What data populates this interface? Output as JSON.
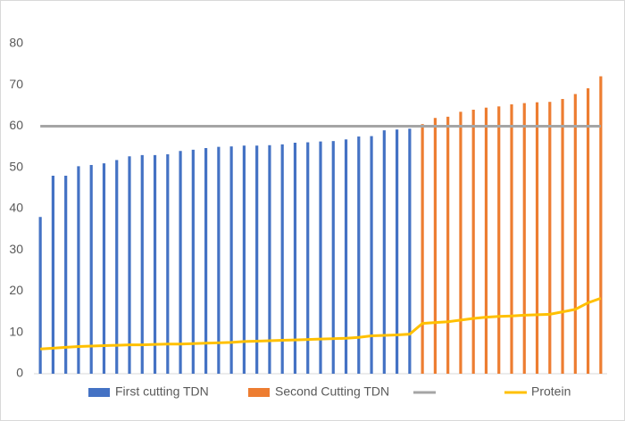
{
  "chart_data": {
    "type": "bar",
    "categories": [
      null,
      null,
      null,
      null,
      null,
      null,
      null,
      null,
      null,
      null,
      null,
      null,
      null,
      null,
      null,
      null,
      null,
      null,
      null,
      null,
      null,
      null,
      null,
      null,
      null,
      null,
      null,
      null,
      null,
      null,
      null,
      null,
      null,
      null,
      null,
      null,
      null,
      null,
      null,
      null,
      null,
      null,
      null,
      null,
      null
    ],
    "series": [
      {
        "name": "First cutting TDN",
        "type": "bar",
        "color": "#4472c4",
        "values": [
          38,
          48,
          48,
          50.3,
          50.6,
          51,
          51.8,
          52.7,
          53,
          53,
          53.2,
          54,
          54.3,
          54.7,
          55,
          55.1,
          55.3,
          55.3,
          55.4,
          55.6,
          56,
          56.1,
          56.3,
          56.4,
          56.8,
          57.5,
          57.6,
          59,
          59.2,
          59.4,
          null,
          null,
          null,
          null,
          null,
          null,
          null,
          null,
          null,
          null,
          null,
          null,
          null,
          null,
          null
        ]
      },
      {
        "name": "Second Cutting TDN",
        "type": "bar",
        "color": "#ed7d31",
        "values": [
          null,
          null,
          null,
          null,
          null,
          null,
          null,
          null,
          null,
          null,
          null,
          null,
          null,
          null,
          null,
          null,
          null,
          null,
          null,
          null,
          null,
          null,
          null,
          null,
          null,
          null,
          null,
          null,
          null,
          null,
          60.5,
          62,
          62.3,
          63.5,
          64,
          64.5,
          64.8,
          65.3,
          65.6,
          65.8,
          65.9,
          66.6,
          67.8,
          69.2,
          72.1
        ]
      },
      {
        "type": "line",
        "color": "#a5a5a5",
        "values": [
          60,
          60,
          60,
          60,
          60,
          60,
          60,
          60,
          60,
          60,
          60,
          60,
          60,
          60,
          60,
          60,
          60,
          60,
          60,
          60,
          60,
          60,
          60,
          60,
          60,
          60,
          60,
          60,
          60,
          60,
          60,
          60,
          60,
          60,
          60,
          60,
          60,
          60,
          60,
          60,
          60,
          60,
          60,
          60,
          60
        ]
      },
      {
        "name": "Protein",
        "type": "line",
        "color": "#ffc000",
        "values": [
          6.0,
          6.2,
          6.4,
          6.6,
          6.7,
          6.8,
          6.9,
          7.0,
          7.0,
          7.1,
          7.2,
          7.2,
          7.3,
          7.4,
          7.5,
          7.6,
          7.8,
          7.9,
          8.0,
          8.1,
          8.2,
          8.3,
          8.4,
          8.5,
          8.6,
          8.8,
          9.2,
          9.3,
          9.4,
          9.6,
          12.2,
          12.4,
          12.6,
          13.0,
          13.4,
          13.7,
          13.9,
          14.0,
          14.2,
          14.3,
          14.4,
          15.0,
          15.6,
          17.2,
          18.3
        ]
      }
    ],
    "ylim": [
      0,
      80
    ],
    "yticks": [
      0,
      10,
      20,
      30,
      40,
      50,
      60,
      70,
      80
    ],
    "grid": false,
    "legend": "bottom"
  }
}
